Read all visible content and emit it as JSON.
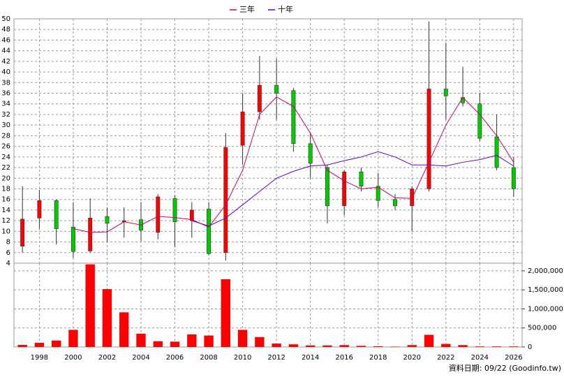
{
  "chart_data": [
    {
      "type": "candlestick",
      "x": [
        1997,
        1998,
        1999,
        2000,
        2001,
        2002,
        2003,
        2004,
        2005,
        2006,
        2007,
        2008,
        2009,
        2010,
        2011,
        2012,
        2013,
        2014,
        2015,
        2016,
        2017,
        2018,
        2019,
        2020,
        2021,
        2022,
        2023,
        2024,
        2025,
        2026
      ],
      "open": [
        7.2,
        12.5,
        15.8,
        10.8,
        6.3,
        12.8,
        11.8,
        12.2,
        9.8,
        16.2,
        12,
        14.2,
        6,
        26.2,
        32.5,
        37.5,
        36.5,
        26.5,
        22,
        14.8,
        21.2,
        18.5,
        16,
        14.8,
        18,
        36.8,
        35.2,
        34,
        27.8,
        22
      ],
      "high": [
        18.5,
        17.8,
        16,
        15.5,
        16.2,
        14.5,
        14.5,
        15.5,
        17,
        16.8,
        15.5,
        15.5,
        28.5,
        36,
        43,
        42.5,
        37,
        28.5,
        22.5,
        21.5,
        22,
        21,
        17,
        18.5,
        49.5,
        45.5,
        41,
        36,
        32,
        24
      ],
      "low": [
        6,
        10.5,
        7.5,
        5,
        6,
        8,
        8.8,
        8.2,
        8.5,
        7,
        8.8,
        5.5,
        4.5,
        22.5,
        31,
        31,
        25,
        20,
        11.5,
        13,
        17.5,
        14.5,
        14,
        10,
        17.5,
        31,
        33.5,
        27,
        21.5,
        16.5
      ],
      "close": [
        12.3,
        15.8,
        10.5,
        6.2,
        12.5,
        11.5,
        12,
        10.2,
        16.5,
        11.8,
        14,
        5.8,
        25.8,
        32.5,
        37.5,
        36,
        26.5,
        22.8,
        14.8,
        21.2,
        18.5,
        15.8,
        14.8,
        18,
        36.8,
        35.5,
        34.2,
        27.5,
        22,
        18
      ],
      "up_color": "#ff0000",
      "down_color": "#00cc00",
      "series": [
        {
          "name": "三年",
          "color": "#cc0066",
          "values": [
            null,
            null,
            null,
            10.5,
            9.8,
            9.9,
            11.8,
            11.2,
            12.8,
            12.6,
            12.2,
            10.8,
            15,
            21.5,
            32,
            35.3,
            33.5,
            28.5,
            21.5,
            19.5,
            18,
            18.3,
            16.3,
            16.2,
            23,
            30,
            35.2,
            32,
            28,
            23
          ]
        },
        {
          "name": "十年",
          "color": "#6600cc",
          "values": [
            null,
            null,
            null,
            null,
            null,
            null,
            null,
            null,
            null,
            null,
            12,
            11,
            12.5,
            15,
            17.5,
            20,
            21.3,
            22.3,
            22.5,
            23.3,
            24,
            25,
            24,
            22.5,
            22.5,
            22.3,
            23,
            23.5,
            24.3,
            22.3
          ]
        }
      ],
      "xlim": [
        1996.5,
        2026.5
      ],
      "xticks": [
        1998,
        2000,
        2002,
        2004,
        2006,
        2008,
        2010,
        2012,
        2014,
        2016,
        2018,
        2020,
        2022,
        2024,
        2026
      ],
      "ylim": [
        4,
        50
      ],
      "yticks": [
        4,
        6,
        8,
        10,
        12,
        14,
        16,
        18,
        20,
        22,
        24,
        26,
        28,
        30,
        32,
        34,
        36,
        38,
        40,
        42,
        44,
        46,
        48,
        50
      ],
      "grid": true
    },
    {
      "type": "bar",
      "x": [
        1997,
        1998,
        1999,
        2000,
        2001,
        2002,
        2003,
        2004,
        2005,
        2006,
        2007,
        2008,
        2009,
        2010,
        2011,
        2012,
        2013,
        2014,
        2015,
        2016,
        2017,
        2018,
        2019,
        2020,
        2021,
        2022,
        2023,
        2024,
        2025,
        2026
      ],
      "values": [
        55000,
        110000,
        170000,
        450000,
        2170000,
        1520000,
        910000,
        350000,
        150000,
        140000,
        330000,
        300000,
        1780000,
        450000,
        260000,
        90000,
        70000,
        40000,
        40000,
        50000,
        30000,
        20000,
        10000,
        50000,
        320000,
        80000,
        50000,
        15000,
        15000,
        15000
      ],
      "color": "#ff0000",
      "xlim": [
        1996.5,
        2026.5
      ],
      "xticks": [
        1998,
        2000,
        2002,
        2004,
        2006,
        2008,
        2010,
        2012,
        2014,
        2016,
        2018,
        2020,
        2022,
        2024,
        2026
      ],
      "ylim": [
        0,
        2200000
      ],
      "yticks": [
        0,
        {
          "value": 500000,
          "label": "500,000"
        },
        {
          "value": 1000000,
          "label": "1,000,000"
        },
        {
          "value": 1500000,
          "label": "1,500,000"
        },
        {
          "value": 2000000,
          "label": "2,000,000"
        }
      ],
      "grid": true,
      "footnote": "資料日期: 09/22 (Goodinfo.tw)"
    }
  ]
}
